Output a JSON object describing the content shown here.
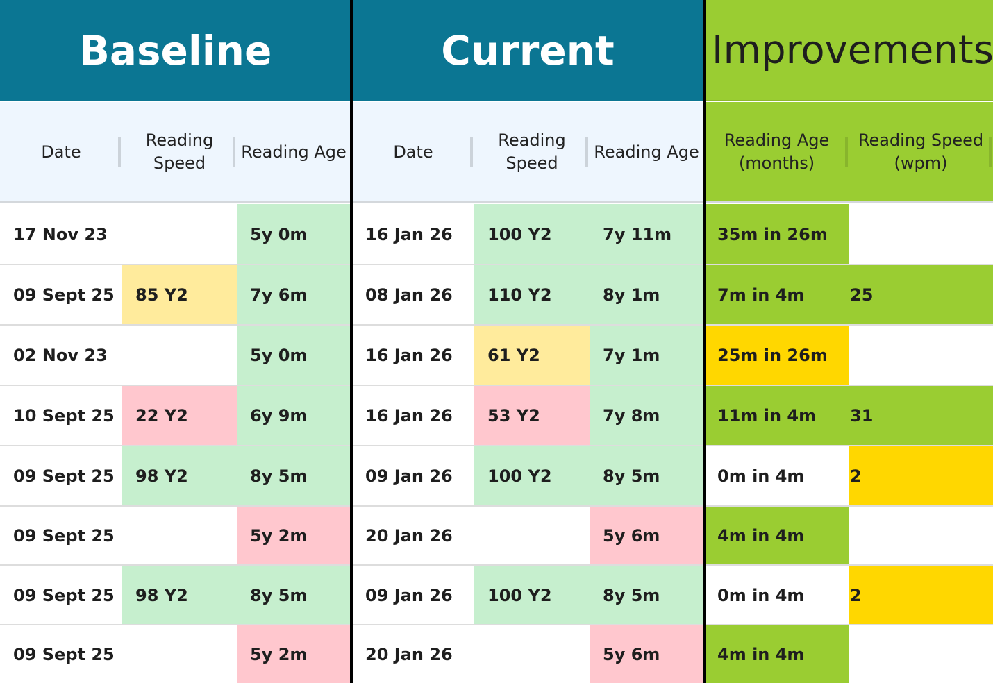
{
  "sections": {
    "baseline": {
      "title": "Baseline",
      "columns": [
        "Date",
        "Reading Speed",
        "Reading Age"
      ]
    },
    "current": {
      "title": "Current",
      "columns": [
        "Date",
        "Reading Speed",
        "Reading Age"
      ]
    },
    "improvements": {
      "title": "Improvements",
      "columns": [
        "Reading Age (months)",
        "Reading Speed (wpm)"
      ]
    }
  },
  "colors": {
    "header_teal": "#0B7693",
    "improvement_green": "#9ACD32",
    "subheader_bg": "#EEF6FE",
    "good": "#C6EFCE",
    "neutral": "#FFEB9C",
    "bad": "#FFC7CE",
    "warning": "#FFD700",
    "none": "#FFFFFF"
  },
  "rows": [
    {
      "cells": [
        [
          "17 Nov 23",
          "none"
        ],
        [
          "",
          "none"
        ],
        [
          "5y 0m",
          "good"
        ],
        [
          "16 Jan 26",
          "none"
        ],
        [
          "100 Y2",
          "good"
        ],
        [
          "7y 11m",
          "good"
        ],
        [
          "35m in 26m",
          "improvement_green"
        ],
        [
          "",
          "none"
        ]
      ]
    },
    {
      "cells": [
        [
          "09 Sept 25",
          "none"
        ],
        [
          "85 Y2",
          "neutral"
        ],
        [
          "7y 6m",
          "good"
        ],
        [
          "08 Jan 26",
          "none"
        ],
        [
          "110 Y2",
          "good"
        ],
        [
          "8y 1m",
          "good"
        ],
        [
          "7m in 4m",
          "improvement_green"
        ],
        [
          "25",
          "improvement_green"
        ]
      ]
    },
    {
      "cells": [
        [
          "02 Nov 23",
          "none"
        ],
        [
          "",
          "none"
        ],
        [
          "5y 0m",
          "good"
        ],
        [
          "16 Jan 26",
          "none"
        ],
        [
          "61 Y2",
          "neutral"
        ],
        [
          "7y 1m",
          "good"
        ],
        [
          "25m in 26m",
          "warning"
        ],
        [
          "",
          "none"
        ]
      ]
    },
    {
      "cells": [
        [
          "10 Sept 25",
          "none"
        ],
        [
          "22 Y2",
          "bad"
        ],
        [
          "6y 9m",
          "good"
        ],
        [
          "16 Jan 26",
          "none"
        ],
        [
          "53 Y2",
          "bad"
        ],
        [
          "7y 8m",
          "good"
        ],
        [
          "11m in 4m",
          "improvement_green"
        ],
        [
          "31",
          "improvement_green"
        ]
      ]
    },
    {
      "cells": [
        [
          "09 Sept 25",
          "none"
        ],
        [
          "98 Y2",
          "good"
        ],
        [
          "8y 5m",
          "good"
        ],
        [
          "09 Jan 26",
          "none"
        ],
        [
          "100 Y2",
          "good"
        ],
        [
          "8y 5m",
          "good"
        ],
        [
          "0m in 4m",
          "none"
        ],
        [
          "2",
          "warning"
        ]
      ]
    },
    {
      "cells": [
        [
          "09 Sept 25",
          "none"
        ],
        [
          "",
          "none"
        ],
        [
          "5y 2m",
          "bad"
        ],
        [
          "20 Jan 26",
          "none"
        ],
        [
          "",
          "none"
        ],
        [
          "5y 6m",
          "bad"
        ],
        [
          "4m in 4m",
          "improvement_green"
        ],
        [
          "",
          "none"
        ]
      ]
    },
    {
      "cells": [
        [
          "09 Sept 25",
          "none"
        ],
        [
          "98 Y2",
          "good"
        ],
        [
          "8y 5m",
          "good"
        ],
        [
          "09 Jan 26",
          "none"
        ],
        [
          "100 Y2",
          "good"
        ],
        [
          "8y 5m",
          "good"
        ],
        [
          "0m in 4m",
          "none"
        ],
        [
          "2",
          "warning"
        ]
      ]
    },
    {
      "cells": [
        [
          "09 Sept 25",
          "none"
        ],
        [
          "",
          "none"
        ],
        [
          "5y 2m",
          "bad"
        ],
        [
          "20 Jan 26",
          "none"
        ],
        [
          "",
          "none"
        ],
        [
          "5y 6m",
          "bad"
        ],
        [
          "4m in 4m",
          "improvement_green"
        ],
        [
          "",
          "none"
        ]
      ]
    }
  ]
}
